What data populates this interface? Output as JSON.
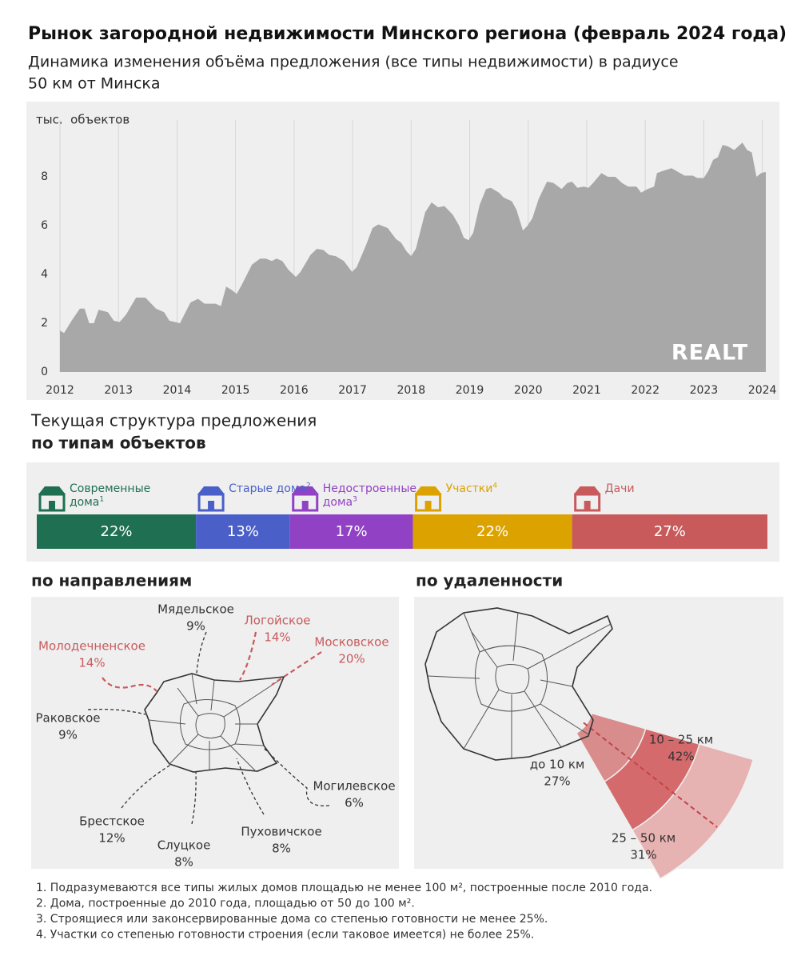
{
  "title": "Рынок загородной недвижимости Минского региона (февраль 2024 года)",
  "subtitle": [
    "Динамика изменения объёма предложения (все типы недвижимости) в радиусе",
    "50 км от Минска"
  ],
  "chart_data": {
    "type": "area",
    "y_label": "тыс.  объектов",
    "logo": "REALT",
    "color": "#a8a8a8",
    "grid": "x",
    "xlim": [
      2012,
      2024.06
    ],
    "xticks": [
      2012,
      2013,
      2014,
      2015,
      2016,
      2017,
      2018,
      2019,
      2020,
      2021,
      2022,
      2023,
      2024
    ],
    "ylim": [
      0,
      10
    ],
    "yticks": [
      0,
      2,
      4,
      6,
      8
    ],
    "x": [
      2012.0,
      2012.07,
      2012.2,
      2012.34,
      2012.42,
      2012.5,
      2012.58,
      2012.66,
      2012.82,
      2012.92,
      2013.02,
      2013.13,
      2013.3,
      2013.46,
      2013.64,
      2013.78,
      2013.87,
      2014.05,
      2014.23,
      2014.36,
      2014.47,
      2014.66,
      2014.75,
      2014.84,
      2014.94,
      2015.02,
      2015.1,
      2015.28,
      2015.42,
      2015.52,
      2015.62,
      2015.7,
      2015.8,
      2015.9,
      2016.03,
      2016.11,
      2016.28,
      2016.39,
      2016.5,
      2016.6,
      2016.71,
      2016.85,
      2016.99,
      2017.07,
      2017.23,
      2017.34,
      2017.44,
      2017.6,
      2017.74,
      2017.83,
      2017.92,
      2018.0,
      2018.08,
      2018.24,
      2018.35,
      2018.46,
      2018.57,
      2018.71,
      2018.82,
      2018.9,
      2018.98,
      2019.06,
      2019.17,
      2019.28,
      2019.36,
      2019.5,
      2019.58,
      2019.72,
      2019.8,
      2019.91,
      2019.99,
      2020.07,
      2020.18,
      2020.32,
      2020.43,
      2020.57,
      2020.67,
      2020.75,
      2020.84,
      2020.95,
      2021.03,
      2021.11,
      2021.25,
      2021.36,
      2021.49,
      2021.6,
      2021.71,
      2021.85,
      2021.93,
      2022.04,
      2022.15,
      2022.2,
      2022.31,
      2022.45,
      2022.56,
      2022.67,
      2022.81,
      2022.89,
      2023.0,
      2023.08,
      2023.16,
      2023.24,
      2023.32,
      2023.41,
      2023.52,
      2023.66,
      2023.74,
      2023.82,
      2023.9,
      2023.98,
      2024.06
    ],
    "values": [
      1.7,
      1.6,
      2.1,
      2.6,
      2.6,
      2.0,
      2.0,
      2.55,
      2.45,
      2.1,
      2.05,
      2.35,
      3.05,
      3.05,
      2.6,
      2.45,
      2.1,
      2.0,
      2.85,
      3.0,
      2.8,
      2.8,
      2.7,
      3.5,
      3.35,
      3.2,
      3.55,
      4.4,
      4.65,
      4.65,
      4.55,
      4.65,
      4.55,
      4.2,
      3.9,
      4.1,
      4.8,
      5.05,
      5.0,
      4.8,
      4.75,
      4.55,
      4.1,
      4.3,
      5.2,
      5.9,
      6.05,
      5.9,
      5.45,
      5.3,
      4.95,
      4.75,
      5.05,
      6.55,
      6.95,
      6.75,
      6.8,
      6.45,
      6.0,
      5.5,
      5.4,
      5.7,
      6.85,
      7.5,
      7.55,
      7.35,
      7.15,
      7.0,
      6.65,
      5.8,
      6.0,
      6.3,
      7.1,
      7.8,
      7.75,
      7.5,
      7.75,
      7.8,
      7.55,
      7.6,
      7.55,
      7.75,
      8.15,
      8.0,
      8.0,
      7.75,
      7.6,
      7.6,
      7.35,
      7.5,
      7.6,
      8.15,
      8.25,
      8.35,
      8.2,
      8.05,
      8.05,
      7.95,
      7.95,
      8.25,
      8.7,
      8.8,
      9.3,
      9.25,
      9.1,
      9.4,
      9.1,
      9.0,
      8.0,
      8.15,
      8.2
    ]
  },
  "structure": {
    "title": "Текущая структура предложения",
    "subtitle": "по типам объектов",
    "items": [
      {
        "name": "Современные дома",
        "note": "1",
        "value": 22,
        "value_label": "22%",
        "color": "#1f7052"
      },
      {
        "name": "Старые дома",
        "note": "2",
        "value": 13,
        "value_label": "13%",
        "color": "#4a5fc8"
      },
      {
        "name": "Недостроенные дома",
        "note": "3",
        "value": 17,
        "value_label": "17%",
        "color": "#9142c4"
      },
      {
        "name": "Участки",
        "note": "4",
        "value": 22,
        "value_label": "22%",
        "color": "#dca200"
      },
      {
        "name": "Дачи",
        "value": 27,
        "value_label": "27%",
        "color": "#c85a5c"
      }
    ]
  },
  "directions": {
    "title": "по направлениям",
    "items": [
      {
        "name": "Мядельское",
        "value": 9,
        "value_label": "9%",
        "color": "#333333"
      },
      {
        "name": "Логойское",
        "value": 14,
        "value_label": "14%",
        "color": "#c85a5c"
      },
      {
        "name": "Московское",
        "value": 20,
        "value_label": "20%",
        "color": "#c85a5c"
      },
      {
        "name": "Могилевское",
        "value": 6,
        "value_label": "6%",
        "color": "#333333"
      },
      {
        "name": "Пуховичское",
        "value": 8,
        "value_label": "8%",
        "color": "#333333"
      },
      {
        "name": "Слуцкое",
        "value": 8,
        "value_label": "8%",
        "color": "#333333"
      },
      {
        "name": "Брестское",
        "value": 12,
        "value_label": "12%",
        "color": "#333333"
      },
      {
        "name": "Раковское",
        "value": 9,
        "value_label": "9%",
        "color": "#333333"
      },
      {
        "name": "Молодечненское",
        "value": 14,
        "value_label": "14%",
        "color": "#c85a5c"
      }
    ]
  },
  "distance": {
    "title": "по удаленности",
    "items": [
      {
        "name": "до 10 км",
        "value": 27,
        "value_label": "27%",
        "color": "#d98c8c"
      },
      {
        "name": "10 – 25 км",
        "value": 42,
        "value_label": "42%",
        "color": "#d46a6c"
      },
      {
        "name": "25 – 50 км",
        "value": 31,
        "value_label": "31%",
        "color": "#e7b2b2"
      }
    ]
  },
  "footnotes": [
    "1. Подразумеваются все типы жилых домов площадью не менее 100 м², построенные после 2010 года.",
    "2. Дома, построенные до 2010 года, площадью от 50 до 100 м².",
    "3. Строящиеся или законсервированные дома со степенью готовности не менее 25%.",
    "4. Участки со степенью готовности строения (если таковое имеется) не более 25%."
  ]
}
